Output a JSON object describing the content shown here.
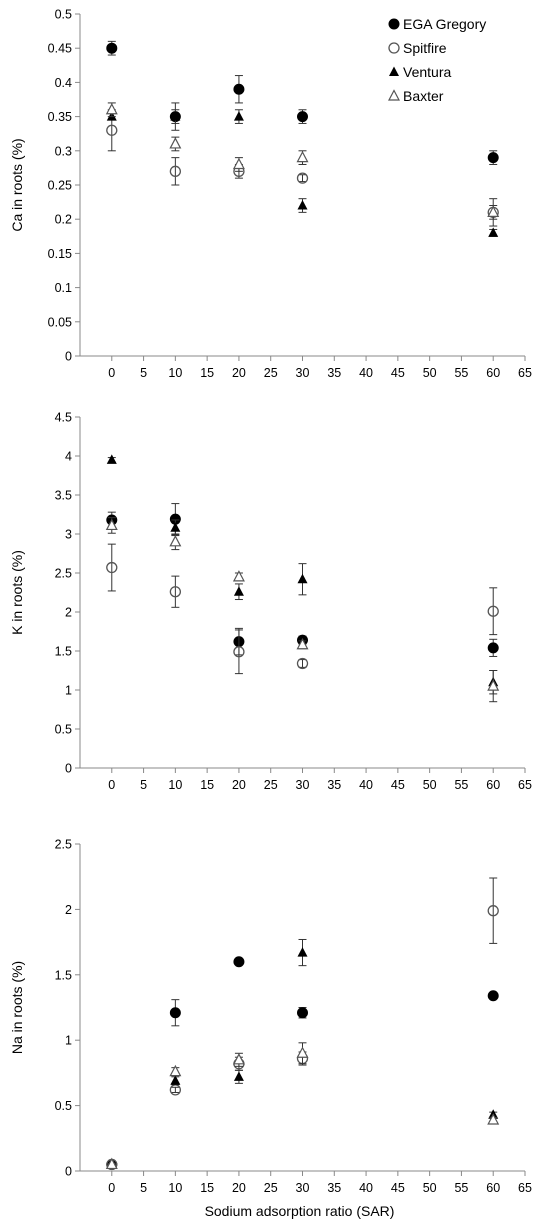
{
  "chart_data": [
    {
      "type": "scatter",
      "ylabel": "Ca in roots (%)",
      "xlabel": "",
      "xlim": [
        -5,
        65
      ],
      "ylim": [
        0,
        0.5
      ],
      "x_ticks": [
        0,
        5,
        10,
        15,
        20,
        25,
        30,
        35,
        40,
        45,
        50,
        55,
        60,
        65
      ],
      "y_ticks": [
        0,
        0.05,
        0.1,
        0.15,
        0.2,
        0.25,
        0.3,
        0.35,
        0.4,
        0.45,
        0.5
      ],
      "y_tick_labels": [
        "0",
        "0.05",
        "0.1",
        "0.15",
        "0.2",
        "0.25",
        "0.3",
        "0.35",
        "0.4",
        "0.45",
        "0.5"
      ],
      "legend": {
        "position": "top-right",
        "entries": [
          "EGA Gregory",
          "Spitfire",
          "Ventura",
          "Baxter"
        ]
      },
      "series": [
        {
          "name": "EGA Gregory",
          "marker": "filled-circle",
          "x": [
            0,
            10,
            20,
            30,
            60
          ],
          "y": [
            0.45,
            0.35,
            0.39,
            0.35,
            0.29
          ],
          "err": [
            0.01,
            0.02,
            0.02,
            0.01,
            0.01
          ]
        },
        {
          "name": "Spitfire",
          "marker": "open-circle",
          "x": [
            0,
            10,
            20,
            30,
            60
          ],
          "y": [
            0.33,
            0.27,
            0.27,
            0.26,
            0.21
          ],
          "err": [
            0.03,
            0.02,
            0.01,
            0.005,
            0.02
          ]
        },
        {
          "name": "Ventura",
          "marker": "filled-triangle",
          "x": [
            0,
            10,
            20,
            30,
            60
          ],
          "y": [
            0.35,
            0.35,
            0.35,
            0.22,
            0.18
          ],
          "err": [
            0.005,
            0.01,
            0.01,
            0.01,
            0.005
          ]
        },
        {
          "name": "Baxter",
          "marker": "open-triangle",
          "x": [
            0,
            10,
            20,
            30,
            60
          ],
          "y": [
            0.36,
            0.31,
            0.28,
            0.29,
            0.21
          ],
          "err": [
            0.01,
            0.01,
            0.01,
            0.01,
            0.01
          ]
        }
      ]
    },
    {
      "type": "scatter",
      "ylabel": "K in roots (%)",
      "xlabel": "",
      "xlim": [
        -5,
        65
      ],
      "ylim": [
        0,
        4.5
      ],
      "x_ticks": [
        0,
        5,
        10,
        15,
        20,
        25,
        30,
        35,
        40,
        45,
        50,
        55,
        60,
        65
      ],
      "y_ticks": [
        0,
        0.5,
        1,
        1.5,
        2,
        2.5,
        3,
        3.5,
        4,
        4.5
      ],
      "y_tick_labels": [
        "0",
        "0.5",
        "1",
        "1.5",
        "2",
        "2.5",
        "3",
        "3.5",
        "4",
        "4.5"
      ],
      "series": [
        {
          "name": "EGA Gregory",
          "marker": "filled-circle",
          "x": [
            0,
            10,
            20,
            30,
            60
          ],
          "y": [
            3.18,
            3.19,
            1.62,
            1.64,
            1.54
          ],
          "err": [
            0.1,
            0.2,
            0.17,
            0.05,
            0.11
          ]
        },
        {
          "name": "Spitfire",
          "marker": "open-circle",
          "x": [
            0,
            10,
            20,
            30,
            60
          ],
          "y": [
            2.57,
            2.26,
            1.49,
            1.34,
            2.01
          ],
          "err": [
            0.3,
            0.2,
            0.28,
            0.05,
            0.3
          ]
        },
        {
          "name": "Ventura",
          "marker": "filled-triangle",
          "x": [
            0,
            10,
            20,
            30,
            60
          ],
          "y": [
            3.95,
            3.08,
            2.26,
            2.42,
            1.1
          ],
          "err": [
            0.03,
            0.1,
            0.1,
            0.2,
            0.15
          ]
        },
        {
          "name": "Baxter",
          "marker": "open-triangle",
          "x": [
            0,
            10,
            20,
            30,
            60
          ],
          "y": [
            3.11,
            2.9,
            2.45,
            1.58,
            1.05
          ],
          "err": [
            0.1,
            0.1,
            0.05,
            0.05,
            0.2
          ]
        }
      ]
    },
    {
      "type": "scatter",
      "ylabel": "Na in roots (%)",
      "xlabel": "Sodium adsorption ratio (SAR)",
      "xlim": [
        -5,
        65
      ],
      "ylim": [
        0,
        2.5
      ],
      "x_ticks": [
        0,
        5,
        10,
        15,
        20,
        25,
        30,
        35,
        40,
        45,
        50,
        55,
        60,
        65
      ],
      "y_ticks": [
        0,
        0.5,
        1,
        1.5,
        2,
        2.5
      ],
      "y_tick_labels": [
        "0",
        "0.5",
        "1",
        "1.5",
        "2",
        "2.5"
      ],
      "series": [
        {
          "name": "EGA Gregory",
          "marker": "filled-circle",
          "x": [
            0,
            10,
            20,
            30,
            60
          ],
          "y": [
            0.05,
            1.21,
            1.6,
            1.21,
            1.34
          ],
          "err": [
            0.005,
            0.1,
            0.01,
            0.04,
            0.01
          ]
        },
        {
          "name": "Spitfire",
          "marker": "open-circle",
          "x": [
            0,
            10,
            20,
            30,
            60
          ],
          "y": [
            0.05,
            0.62,
            0.82,
            0.86,
            1.99
          ],
          "err": [
            0.005,
            0.02,
            0.05,
            0.05,
            0.25
          ]
        },
        {
          "name": "Ventura",
          "marker": "filled-triangle",
          "x": [
            0,
            10,
            20,
            30,
            60
          ],
          "y": [
            0.05,
            0.69,
            0.72,
            1.67,
            0.43
          ],
          "err": [
            0.005,
            0.03,
            0.05,
            0.1,
            0.02
          ]
        },
        {
          "name": "Baxter",
          "marker": "open-triangle",
          "x": [
            0,
            10,
            20,
            30,
            60
          ],
          "y": [
            0.05,
            0.76,
            0.85,
            0.9,
            0.39
          ],
          "err": [
            0.005,
            0.03,
            0.05,
            0.08,
            0.02
          ]
        }
      ]
    }
  ]
}
